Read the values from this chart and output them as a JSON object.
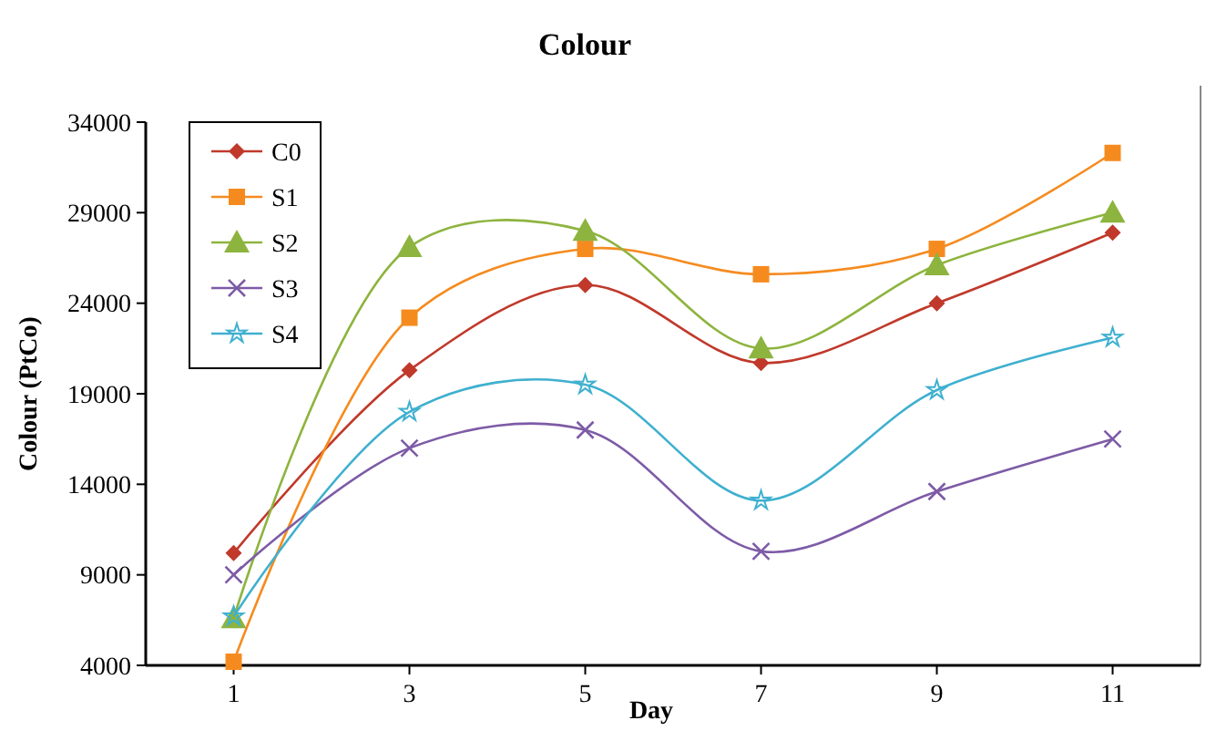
{
  "chart_data": {
    "type": "line",
    "title": "Colour",
    "xlabel": "Day",
    "ylabel": "Colour (PtCo)",
    "x": [
      1,
      3,
      5,
      7,
      9,
      11
    ],
    "xlim": [
      0,
      12
    ],
    "xticks": [
      1,
      3,
      5,
      7,
      9,
      11
    ],
    "ylim": [
      4000,
      34000
    ],
    "yticks": [
      4000,
      9000,
      14000,
      19000,
      24000,
      29000,
      34000
    ],
    "grid": false,
    "legend": "top left",
    "line_style": "solid",
    "series": [
      {
        "name": "C0",
        "color": "#c0392b",
        "marker": "diamond",
        "values": [
          10200,
          20300,
          25000,
          20700,
          24000,
          27900
        ]
      },
      {
        "name": "S1",
        "color": "#f58b1f",
        "marker": "square",
        "values": [
          4200,
          23200,
          27000,
          25600,
          27000,
          32300
        ]
      },
      {
        "name": "S2",
        "color": "#8db43e",
        "marker": "triangle",
        "values": [
          6600,
          27100,
          28000,
          21500,
          26100,
          29000
        ]
      },
      {
        "name": "S3",
        "color": "#7d5ba6",
        "marker": "cross",
        "values": [
          9000,
          16000,
          17000,
          10300,
          13600,
          16500
        ]
      },
      {
        "name": "S4",
        "color": "#3fb0cf",
        "marker": "star",
        "values": [
          6700,
          18000,
          19500,
          13100,
          19200,
          22100
        ]
      }
    ]
  }
}
